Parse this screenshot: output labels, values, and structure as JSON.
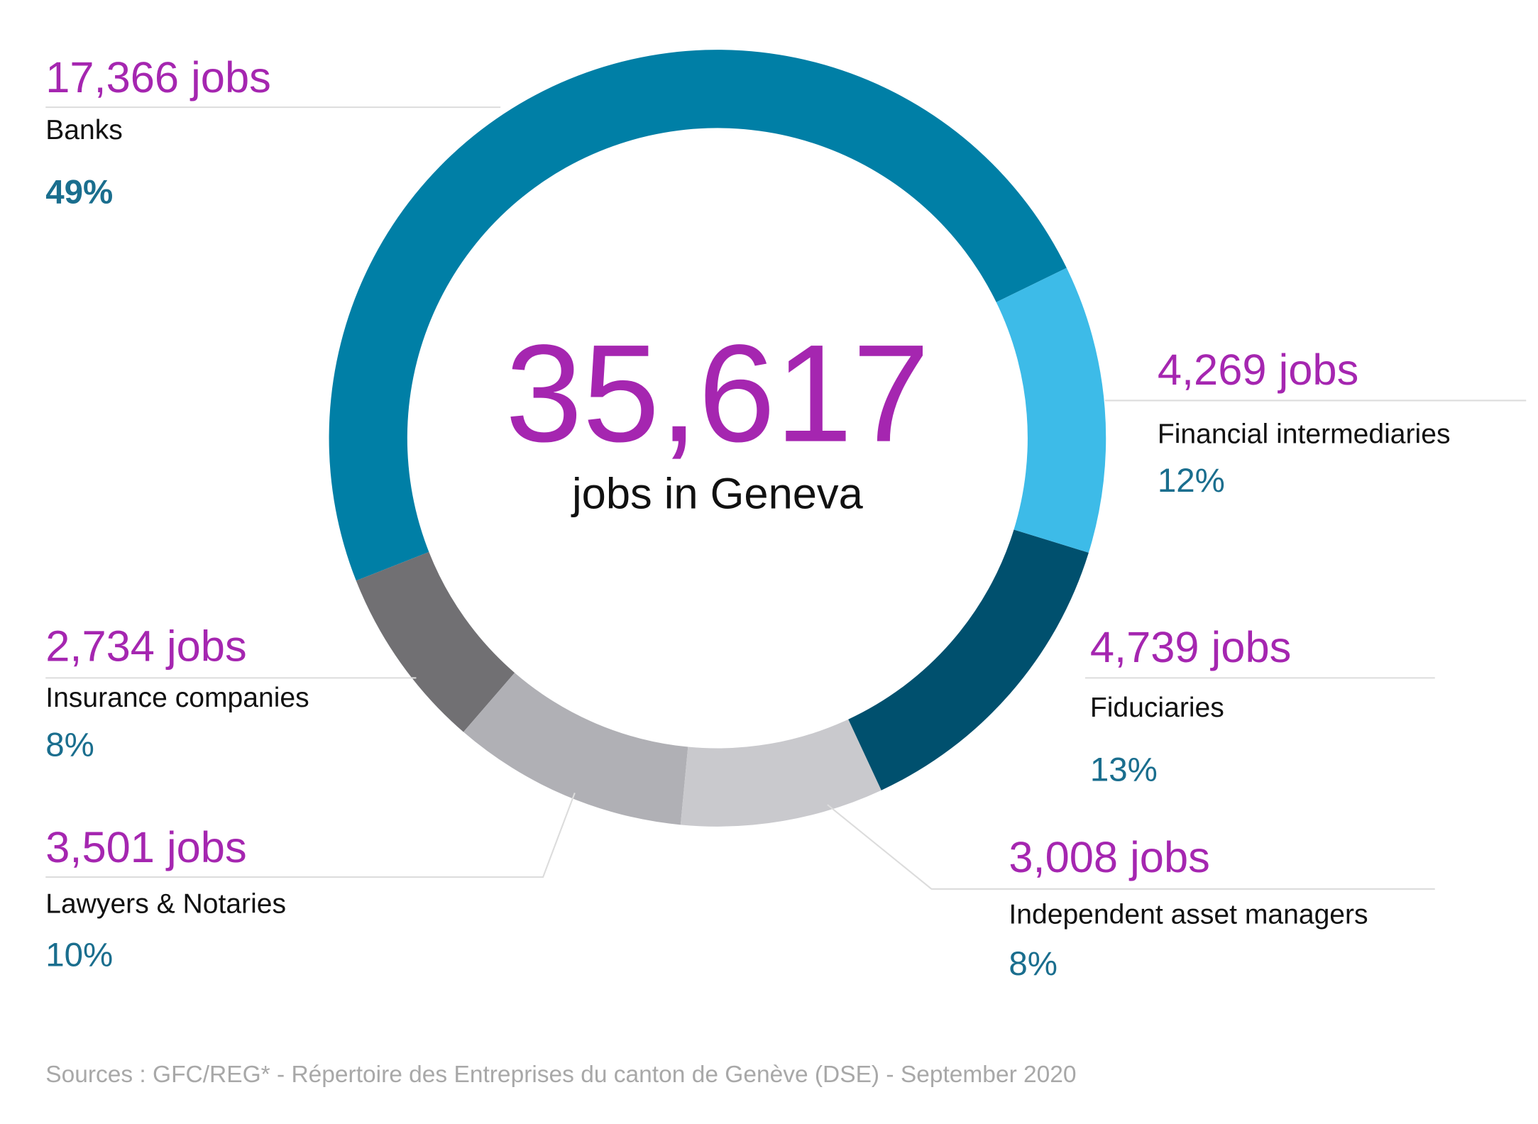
{
  "chart_data": {
    "type": "donut",
    "center_label": "35,617",
    "center_caption": "jobs in Geneva",
    "categories": [
      "Financial intermediaries",
      "Fiduciaries",
      "Independent asset managers",
      "Lawyers & Notaries",
      "Insurance companies",
      "Banks"
    ],
    "values": [
      4269,
      4739,
      3008,
      3501,
      2734,
      17366
    ],
    "value_labels": [
      "4,269 jobs",
      "4,739 jobs",
      "3,008 jobs",
      "3,501 jobs",
      "2,734 jobs",
      "17,366 jobs"
    ],
    "percent_labels": [
      "12%",
      "13%",
      "8%",
      "10%",
      "8%",
      "49%"
    ],
    "colors": [
      "#3dbbe8",
      "#00506e",
      "#c9c9cd",
      "#b0b0b5",
      "#717073",
      "#007fa6"
    ],
    "source": "Sources :   GFC/REG* - Répertoire des Entreprises du canton de Genève (DSE) - September 2020"
  }
}
